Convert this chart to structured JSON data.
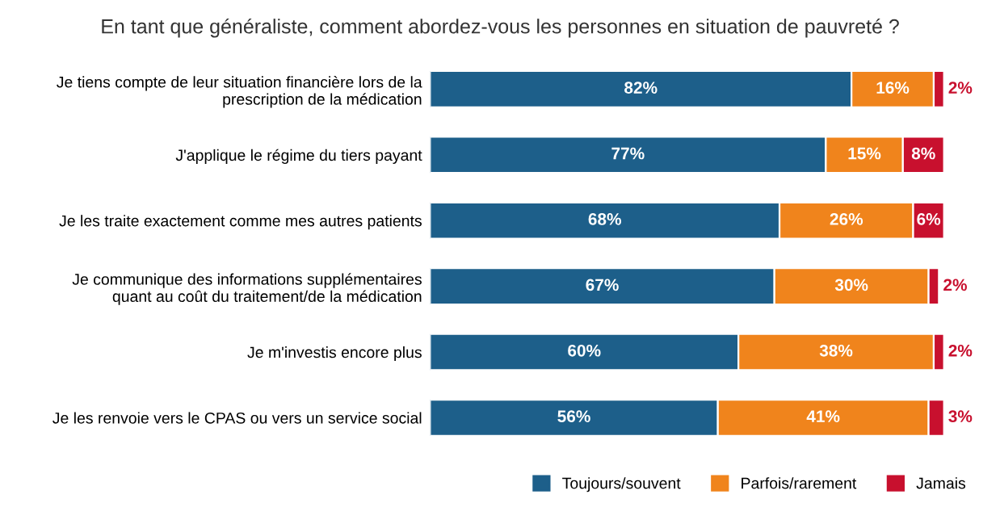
{
  "chart_data": {
    "type": "bar",
    "orientation": "horizontal",
    "stacked": true,
    "title": "En tant que généraliste, comment abordez-vous les personnes en situation de pauvreté ?",
    "categories": [
      "Je tiens compte de leur situation financière lors de la\nprescription de la médication",
      "J'applique le régime du tiers payant",
      "Je les traite exactement comme mes autres patients",
      "Je communique des informations supplémentaires\nquant au coût du traitement/de la médication",
      "Je m'investis encore plus",
      "Je les renvoie vers le CPAS ou vers un service social"
    ],
    "series": [
      {
        "name": "Toujours/souvent",
        "color": "#1d5f8a",
        "values": [
          82,
          77,
          68,
          67,
          60,
          56
        ],
        "value_labels": [
          "82%",
          "77%",
          "68%",
          "67%",
          "60%",
          "56%"
        ]
      },
      {
        "name": "Parfois/rarement",
        "color": "#f0841c",
        "values": [
          16,
          15,
          26,
          30,
          38,
          41
        ],
        "value_labels": [
          "16%",
          "15%",
          "26%",
          "30%",
          "38%",
          "41%"
        ]
      },
      {
        "name": "Jamais",
        "color": "#c8102e",
        "values": [
          2,
          8,
          6,
          2,
          2,
          3
        ],
        "value_labels": [
          "2%",
          "8%",
          "6%",
          "2%",
          "2%",
          "3%"
        ]
      }
    ],
    "tick_labels": "y",
    "legend": "bottom right"
  }
}
